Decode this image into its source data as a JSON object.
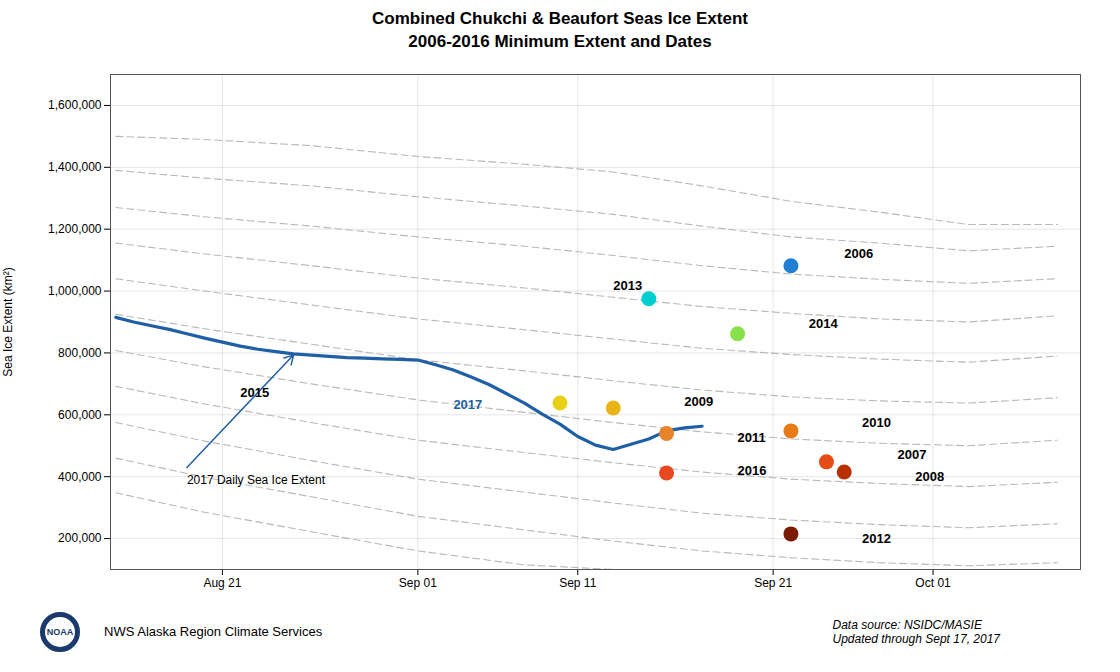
{
  "chart_data": {
    "type": "line",
    "title": "Combined Chukchi & Beaufort Seas Ice Extent\n2006-2016 Minimum Extent and Dates",
    "ylabel": "Sea Ice Extent (km²)",
    "xlim": [
      226.7,
      281.3
    ],
    "xticks": [
      {
        "value": 233,
        "label": "Aug 21"
      },
      {
        "value": 244,
        "label": "Sep 01"
      },
      {
        "value": 253,
        "label": "Sep 11"
      },
      {
        "value": 264,
        "label": "Sep 21"
      },
      {
        "value": 273,
        "label": "Oct 01"
      }
    ],
    "ylim": [
      100000,
      1700000
    ],
    "yticks": [
      {
        "value": 200000,
        "label": "200,000"
      },
      {
        "value": 400000,
        "label": "400,000"
      },
      {
        "value": 600000,
        "label": "600,000"
      },
      {
        "value": 800000,
        "label": "800,000"
      },
      {
        "value": 1000000,
        "label": "1,000,000"
      },
      {
        "value": 1200000,
        "label": "1,200,000"
      },
      {
        "value": 1400000,
        "label": "1,400,000"
      },
      {
        "value": 1600000,
        "label": "1,600,000"
      }
    ],
    "grid": true,
    "series": [
      {
        "x": [
          227,
          232,
          238,
          244,
          250,
          255,
          260,
          265,
          270,
          275,
          280
        ],
        "values": [
          1500000,
          1490000,
          1470000,
          1435000,
          1410000,
          1385000,
          1340000,
          1290000,
          1255000,
          1215000,
          1215000
        ],
        "color": "#b0b0b0",
        "line_style": "dashed"
      },
      {
        "x": [
          227,
          232,
          238,
          244,
          250,
          255,
          260,
          265,
          270,
          275,
          280
        ],
        "values": [
          1390000,
          1365000,
          1340000,
          1305000,
          1275000,
          1248000,
          1210000,
          1175000,
          1155000,
          1130000,
          1145000
        ],
        "color": "#b0b0b0",
        "line_style": "dashed"
      },
      {
        "x": [
          227,
          232,
          238,
          244,
          250,
          255,
          260,
          265,
          270,
          275,
          280
        ],
        "values": [
          1270000,
          1240000,
          1210000,
          1175000,
          1145000,
          1115000,
          1082000,
          1055000,
          1038000,
          1025000,
          1040000
        ],
        "color": "#b0b0b0",
        "line_style": "dashed"
      },
      {
        "x": [
          227,
          232,
          238,
          244,
          250,
          255,
          260,
          265,
          270,
          275,
          280
        ],
        "values": [
          1155000,
          1120000,
          1082000,
          1042000,
          1010000,
          980000,
          950000,
          928000,
          910000,
          900000,
          920000
        ],
        "color": "#b0b0b0",
        "line_style": "dashed"
      },
      {
        "x": [
          227,
          232,
          238,
          244,
          250,
          255,
          260,
          265,
          270,
          275,
          280
        ],
        "values": [
          1040000,
          1000000,
          955000,
          910000,
          875000,
          845000,
          815000,
          795000,
          780000,
          770000,
          790000
        ],
        "color": "#b0b0b0",
        "line_style": "dashed"
      },
      {
        "x": [
          227,
          232,
          238,
          244,
          250,
          255,
          260,
          265,
          270,
          275,
          280
        ],
        "values": [
          925000,
          878000,
          828000,
          778000,
          742000,
          710000,
          680000,
          658000,
          645000,
          638000,
          655000
        ],
        "color": "#b0b0b0",
        "line_style": "dashed"
      },
      {
        "x": [
          227,
          232,
          238,
          244,
          250,
          255,
          260,
          265,
          270,
          275,
          280
        ],
        "values": [
          808000,
          755000,
          700000,
          648000,
          608000,
          575000,
          545000,
          522000,
          508000,
          500000,
          518000
        ],
        "color": "#b0b0b0",
        "line_style": "dashed"
      },
      {
        "x": [
          227,
          232,
          238,
          244,
          250,
          255,
          260,
          265,
          270,
          275,
          280
        ],
        "values": [
          692000,
          635000,
          575000,
          518000,
          478000,
          445000,
          415000,
          392000,
          378000,
          368000,
          382000
        ],
        "color": "#b0b0b0",
        "line_style": "dashed"
      },
      {
        "x": [
          227,
          232,
          238,
          244,
          250,
          255,
          260,
          265,
          270,
          275,
          280
        ],
        "values": [
          575000,
          515000,
          452000,
          392000,
          350000,
          315000,
          282000,
          260000,
          245000,
          235000,
          248000
        ],
        "color": "#b0b0b0",
        "line_style": "dashed"
      },
      {
        "x": [
          227,
          232,
          238,
          244,
          250,
          255,
          260,
          265,
          270,
          275,
          280
        ],
        "values": [
          460000,
          398000,
          335000,
          272000,
          228000,
          192000,
          160000,
          138000,
          122000,
          112000,
          122000
        ],
        "color": "#b0b0b0",
        "line_style": "dashed"
      },
      {
        "x": [
          227,
          232,
          238,
          244,
          250,
          255,
          260,
          265,
          270,
          275,
          280
        ],
        "values": [
          348000,
          285000,
          222000,
          160000,
          115000,
          100000,
          100000,
          100000,
          100000,
          100000,
          100000
        ],
        "color": "#b0b0b0",
        "line_style": "dashed"
      },
      {
        "x": [
          227,
          228,
          229,
          230,
          231,
          232,
          233,
          234,
          235,
          236,
          237,
          238,
          239,
          240,
          241,
          242,
          243,
          244,
          245,
          246,
          247,
          248,
          249,
          250,
          251,
          252,
          253,
          254,
          255,
          256,
          257,
          258,
          259,
          260
        ],
        "values": [
          915000,
          900000,
          888000,
          876000,
          862000,
          848000,
          835000,
          822000,
          812000,
          804000,
          797000,
          793000,
          789000,
          785000,
          783000,
          781000,
          779000,
          777000,
          762000,
          745000,
          722000,
          698000,
          668000,
          638000,
          602000,
          570000,
          530000,
          502000,
          488000,
          505000,
          522000,
          548000,
          558000,
          563000
        ],
        "color": "#1f5fa6",
        "line_style": "solid"
      },
      {
        "type": "scatter",
        "marker": "circle",
        "x": [
          265,
          267,
          268,
          255,
          265,
          258,
          265,
          257,
          262,
          252,
          258
        ],
        "values": [
          1082000,
          448000,
          415000,
          622000,
          548000,
          540000,
          215000,
          975000,
          862000,
          638000,
          412000
        ],
        "colors": [
          "#1e7fd4",
          "#e84c16",
          "#b83000",
          "#e8b416",
          "#e87b16",
          "#e8832a",
          "#7b1a00",
          "#00cece",
          "#88e04a",
          "#e8d016",
          "#e84820"
        ]
      }
    ],
    "annotations": [
      {
        "text": "2006",
        "x": 268,
        "y": 1107000
      },
      {
        "text": "2007",
        "x": 271,
        "y": 458000
      },
      {
        "text": "2008",
        "x": 272,
        "y": 387000
      },
      {
        "text": "2009",
        "x": 259,
        "y": 630000
      },
      {
        "text": "2010",
        "x": 269,
        "y": 560000
      },
      {
        "text": "2011",
        "x": 262,
        "y": 512000
      },
      {
        "text": "2012",
        "x": 269,
        "y": 187000
      },
      {
        "text": "2013",
        "x": 255,
        "y": 1003000
      },
      {
        "text": "2014",
        "x": 266,
        "y": 880000
      },
      {
        "text": "2015",
        "x": 234,
        "y": 656000
      },
      {
        "text": "2016",
        "x": 262,
        "y": 404000
      },
      {
        "text": "2017",
        "x": 246,
        "y": 620000,
        "color": "#1f5fa6"
      }
    ],
    "arrows": [
      {
        "x1": 231,
        "y1": 430000,
        "x2": 237,
        "y2": 793000,
        "color": "#1f5fa6",
        "text": "2017 Daily Sea Ice Extent"
      }
    ],
    "logo": "NOAA",
    "footnotes": [
      "NWS Alaska Region Climate Services",
      "Data source: NSIDC/MASIE\nUpdated through Sept 17, 2017"
    ]
  }
}
